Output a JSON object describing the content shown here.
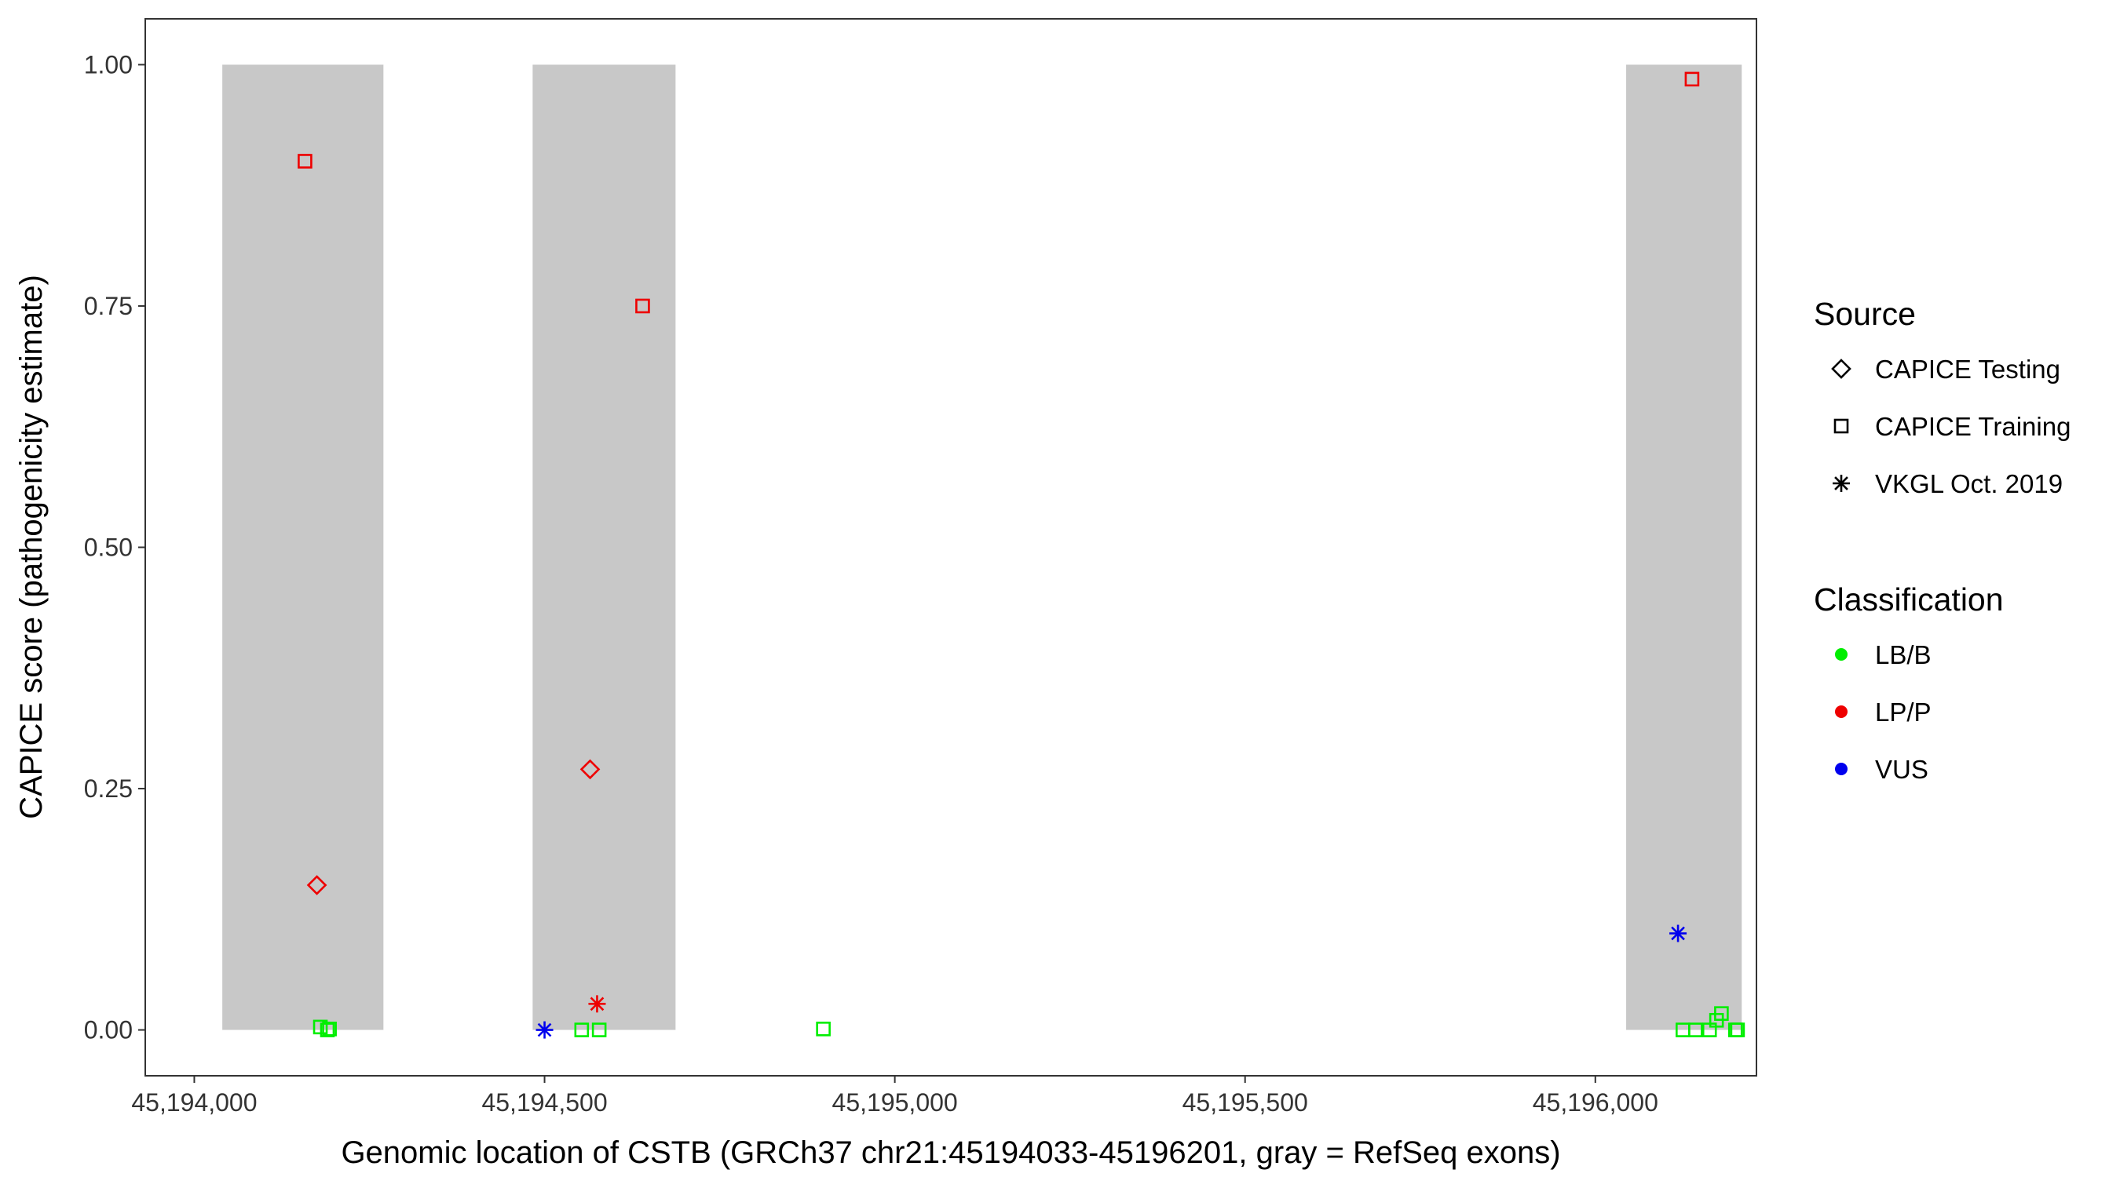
{
  "chart_data": {
    "type": "scatter",
    "xlabel": "Genomic location of CSTB (GRCh37 chr21:45194033-45196201, gray = RefSeq exons)",
    "ylabel": "CAPICE score (pathogenicity estimate)",
    "xlim": [
      45193930,
      45196230
    ],
    "ylim": [
      -0.0475,
      1.0475
    ],
    "x_ticks": [
      45194000,
      45194500,
      45195000,
      45195500,
      45196000
    ],
    "x_tick_labels": [
      "45,194,000",
      "45,194,500",
      "45,195,000",
      "45,195,500",
      "45,196,000"
    ],
    "y_ticks": [
      0,
      0.25,
      0.5,
      0.75,
      1.0
    ],
    "y_tick_labels": [
      "0.00",
      "0.25",
      "0.50",
      "0.75",
      "1.00"
    ],
    "grid": false,
    "exons": [
      {
        "start": 45194040,
        "end": 45194270
      },
      {
        "start": 45194483,
        "end": 45194687
      },
      {
        "start": 45196044,
        "end": 45196209
      }
    ],
    "exon_color": "#c8c8c8",
    "legend_position": "right",
    "legends": {
      "source": {
        "title": "Source",
        "items": [
          {
            "label": "CAPICE Testing",
            "shape": "diamond"
          },
          {
            "label": "CAPICE Training",
            "shape": "square"
          },
          {
            "label": "VKGL Oct. 2019",
            "shape": "asterisk"
          }
        ]
      },
      "classification": {
        "title": "Classification",
        "items": [
          {
            "label": "LB/B",
            "color": "#00ee00"
          },
          {
            "label": "LP/P",
            "color": "#ee0000"
          },
          {
            "label": "VUS",
            "color": "#0000ee"
          }
        ]
      }
    },
    "points": [
      {
        "x": 45194158,
        "y": 0.9,
        "source": "CAPICE Training",
        "class": "LP/P"
      },
      {
        "x": 45194175,
        "y": 0.15,
        "source": "CAPICE Testing",
        "class": "LP/P"
      },
      {
        "x": 45194180,
        "y": 0.003,
        "source": "CAPICE Training",
        "class": "LB/B"
      },
      {
        "x": 45194190,
        "y": 0.0,
        "source": "CAPICE Training",
        "class": "LB/B"
      },
      {
        "x": 45194193,
        "y": 0.001,
        "source": "CAPICE Training",
        "class": "LB/B"
      },
      {
        "x": 45194640,
        "y": 0.75,
        "source": "CAPICE Training",
        "class": "LP/P"
      },
      {
        "x": 45194565,
        "y": 0.27,
        "source": "CAPICE Testing",
        "class": "LP/P"
      },
      {
        "x": 45194575,
        "y": 0.027,
        "source": "VKGL Oct. 2019",
        "class": "LP/P"
      },
      {
        "x": 45194500,
        "y": 0.0,
        "source": "VKGL Oct. 2019",
        "class": "VUS"
      },
      {
        "x": 45194553,
        "y": 0.0,
        "source": "CAPICE Training",
        "class": "LB/B"
      },
      {
        "x": 45194578,
        "y": 0.0,
        "source": "CAPICE Training",
        "class": "LB/B"
      },
      {
        "x": 45194898,
        "y": 0.001,
        "source": "CAPICE Training",
        "class": "LB/B"
      },
      {
        "x": 45196138,
        "y": 0.985,
        "source": "CAPICE Training",
        "class": "LP/P"
      },
      {
        "x": 45196118,
        "y": 0.1,
        "source": "VKGL Oct. 2019",
        "class": "VUS"
      },
      {
        "x": 45196125,
        "y": 0.0,
        "source": "CAPICE Training",
        "class": "LB/B"
      },
      {
        "x": 45196143,
        "y": 0.0,
        "source": "CAPICE Training",
        "class": "LB/B"
      },
      {
        "x": 45196163,
        "y": 0.0,
        "source": "CAPICE Training",
        "class": "LB/B"
      },
      {
        "x": 45196173,
        "y": 0.01,
        "source": "CAPICE Training",
        "class": "LB/B"
      },
      {
        "x": 45196180,
        "y": 0.017,
        "source": "CAPICE Training",
        "class": "LB/B"
      },
      {
        "x": 45196200,
        "y": 0.0,
        "source": "CAPICE Training",
        "class": "LB/B"
      },
      {
        "x": 45196203,
        "y": 0.0,
        "source": "CAPICE Training",
        "class": "LB/B"
      }
    ]
  }
}
